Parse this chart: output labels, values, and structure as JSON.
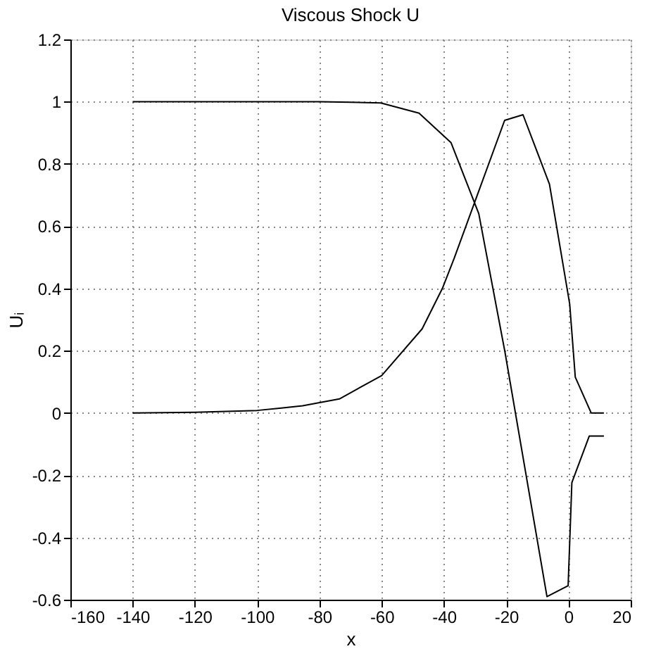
{
  "chart_data": {
    "type": "line",
    "title": "Viscous Shock U",
    "xlabel": "x",
    "ylabel": "Uᵢ",
    "series": [
      {
        "color": "#000000",
        "x": [
          -140,
          -120,
          -100,
          -80,
          -70,
          -60.3,
          -48,
          -37.7,
          -28.8,
          -20.4,
          -6.9,
          -0.1,
          1.1,
          6.7,
          11.4
        ],
        "values": [
          1.0,
          1.0,
          1.0,
          1.0,
          0.998,
          0.996,
          0.963,
          0.868,
          0.64,
          0.196,
          -0.59,
          -0.555,
          -0.224,
          -0.074,
          -0.074
        ]
      },
      {
        "color": "#000000",
        "x": [
          -140,
          -120,
          -100,
          -92.8,
          -85.4,
          -73.6,
          -60,
          -47,
          -40.5,
          -36.7,
          -20.5,
          -14.6,
          -6.1,
          0.4,
          2.2,
          7.3,
          11.4
        ],
        "values": [
          0.0,
          0.002,
          0.008,
          0.015,
          0.023,
          0.045,
          0.12,
          0.27,
          0.4,
          0.497,
          0.94,
          0.958,
          0.735,
          0.35,
          0.115,
          0.0,
          0.0
        ]
      }
    ],
    "xlim": [
      -160,
      20
    ],
    "xticks": [
      -160,
      -140,
      -120,
      -100,
      -80,
      -60,
      -40,
      -20,
      0,
      20
    ],
    "ylim": [
      -0.6,
      1.2
    ],
    "yticks": [
      -0.6,
      -0.4,
      -0.2,
      0,
      0.2,
      0.4,
      0.6,
      0.8,
      1,
      1.2
    ],
    "grid": true,
    "legend": false,
    "line_style": "solid",
    "marker": "none"
  }
}
